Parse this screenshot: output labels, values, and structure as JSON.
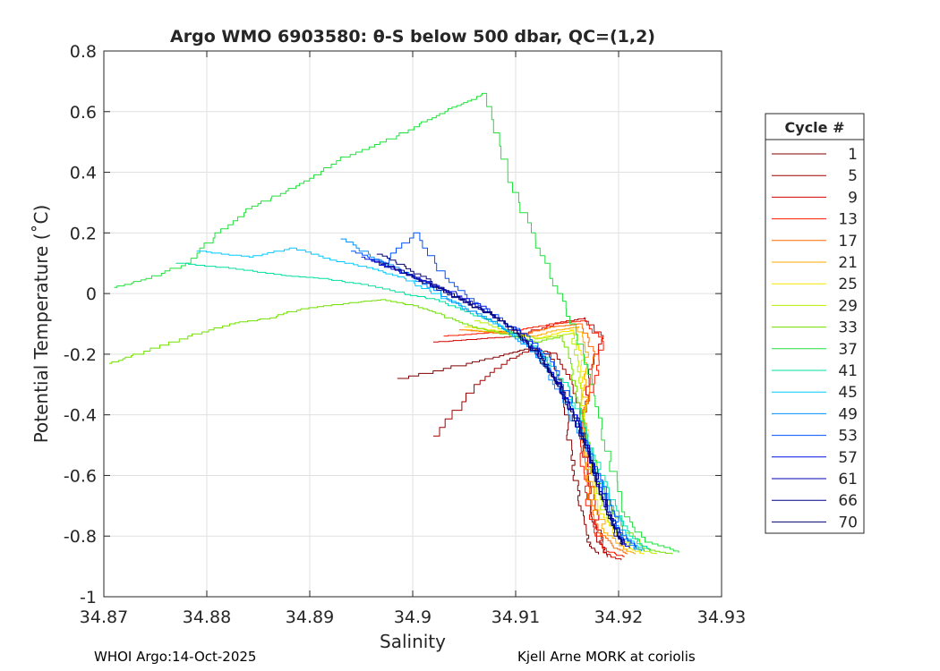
{
  "chart_data": {
    "type": "line",
    "title": "Argo WMO 6903580: θ-S below 500 dbar,  QC=(1,2)",
    "xlabel": "Salinity",
    "ylabel": "Potential Temperature (˚C)",
    "xlim": [
      34.87,
      34.93
    ],
    "ylim": [
      -1,
      0.8
    ],
    "xticks": [
      "34.87",
      "34.88",
      "34.89",
      "34.9",
      "34.91",
      "34.92",
      "34.93"
    ],
    "yticks": [
      "-1",
      "-0.8",
      "-0.6",
      "-0.4",
      "-0.2",
      "0",
      "0.2",
      "0.4",
      "0.6",
      "0.8"
    ],
    "xtick_values": [
      34.87,
      34.88,
      34.89,
      34.9,
      34.91,
      34.92,
      34.93
    ],
    "ytick_values": [
      -1,
      -0.8,
      -0.6,
      -0.4,
      -0.2,
      0,
      0.2,
      0.4,
      0.6,
      0.8
    ],
    "grid": true,
    "legend_title": "Cycle #",
    "legend_position": "right",
    "series": [
      {
        "name": "1",
        "color": "#800000",
        "x": [
          34.8985,
          34.905,
          34.909,
          34.9115,
          34.913,
          34.9145,
          34.915,
          34.9155,
          34.916,
          34.9165,
          34.917,
          34.918
        ],
        "y": [
          -0.28,
          -0.23,
          -0.2,
          -0.18,
          -0.2,
          -0.3,
          -0.45,
          -0.55,
          -0.65,
          -0.75,
          -0.82,
          -0.86
        ]
      },
      {
        "name": "5",
        "color": "#a30000",
        "x": [
          34.902,
          34.906,
          34.909,
          34.9115,
          34.914,
          34.9155,
          34.9165,
          34.917,
          34.9175,
          34.918,
          34.919
        ],
        "y": [
          -0.47,
          -0.3,
          -0.22,
          -0.18,
          -0.2,
          -0.3,
          -0.48,
          -0.6,
          -0.72,
          -0.82,
          -0.87
        ]
      },
      {
        "name": "9",
        "color": "#d10000",
        "x": [
          34.902,
          34.906,
          34.91,
          34.9135,
          34.9165,
          34.9185,
          34.9175,
          34.9165,
          34.917,
          34.9175,
          34.918,
          34.9185,
          34.92
        ],
        "y": [
          -0.16,
          -0.15,
          -0.14,
          -0.1,
          -0.08,
          -0.15,
          -0.25,
          -0.42,
          -0.55,
          -0.68,
          -0.78,
          -0.85,
          -0.88
        ]
      },
      {
        "name": "13",
        "color": "#ff1a00",
        "x": [
          34.903,
          34.907,
          34.91,
          34.9135,
          34.9165,
          34.9185,
          34.918,
          34.9165,
          34.9165,
          34.917,
          34.9178,
          34.9188,
          34.9205
        ],
        "y": [
          -0.14,
          -0.13,
          -0.12,
          -0.1,
          -0.09,
          -0.17,
          -0.27,
          -0.44,
          -0.57,
          -0.7,
          -0.79,
          -0.85,
          -0.87
        ]
      },
      {
        "name": "17",
        "color": "#ff6a00",
        "x": [
          34.9045,
          34.908,
          34.911,
          34.9135,
          34.916,
          34.9175,
          34.9172,
          34.9166,
          34.9168,
          34.9173,
          34.9182,
          34.9195,
          34.921
        ],
        "y": [
          -0.12,
          -0.13,
          -0.13,
          -0.11,
          -0.1,
          -0.19,
          -0.3,
          -0.45,
          -0.58,
          -0.7,
          -0.79,
          -0.84,
          -0.86
        ]
      },
      {
        "name": "21",
        "color": "#ffaa00",
        "x": [
          34.905,
          34.909,
          34.9115,
          34.914,
          34.916,
          34.917,
          34.9168,
          34.9167,
          34.917,
          34.9177,
          34.9188,
          34.9205,
          34.9215
        ],
        "y": [
          -0.12,
          -0.13,
          -0.14,
          -0.12,
          -0.11,
          -0.21,
          -0.32,
          -0.45,
          -0.58,
          -0.7,
          -0.79,
          -0.84,
          -0.86
        ]
      },
      {
        "name": "25",
        "color": "#f5e600",
        "x": [
          34.905,
          34.9095,
          34.912,
          34.914,
          34.9155,
          34.9165,
          34.9165,
          34.9168,
          34.9173,
          34.918,
          34.9192,
          34.921,
          34.9225
        ],
        "y": [
          -0.11,
          -0.13,
          -0.15,
          -0.13,
          -0.12,
          -0.22,
          -0.33,
          -0.45,
          -0.58,
          -0.7,
          -0.78,
          -0.84,
          -0.86
        ]
      },
      {
        "name": "29",
        "color": "#b8f000",
        "x": [
          34.906,
          34.9095,
          34.912,
          34.914,
          34.9155,
          34.916,
          34.9162,
          34.9167,
          34.9173,
          34.9182,
          34.9195,
          34.9215,
          34.9235
        ],
        "y": [
          -0.09,
          -0.13,
          -0.15,
          -0.14,
          -0.13,
          -0.24,
          -0.35,
          -0.46,
          -0.58,
          -0.7,
          -0.78,
          -0.84,
          -0.86
        ]
      },
      {
        "name": "33",
        "color": "#70e000",
        "x": [
          34.8705,
          34.873,
          34.878,
          34.882,
          34.886,
          34.889,
          34.894,
          34.897,
          34.9,
          34.902,
          34.904,
          34.907,
          34.9095,
          34.912,
          34.9145,
          34.9155,
          34.916,
          34.9168,
          34.9178,
          34.919,
          34.9205,
          34.9225,
          34.925
        ],
        "y": [
          -0.23,
          -0.2,
          -0.14,
          -0.1,
          -0.08,
          -0.05,
          -0.03,
          -0.02,
          -0.04,
          -0.06,
          -0.09,
          -0.12,
          -0.14,
          -0.16,
          -0.14,
          -0.25,
          -0.36,
          -0.47,
          -0.59,
          -0.7,
          -0.78,
          -0.84,
          -0.86
        ]
      },
      {
        "name": "37",
        "color": "#1ee03a",
        "x": [
          34.871,
          34.874,
          34.878,
          34.881,
          34.884,
          34.887,
          34.89,
          34.893,
          34.897,
          34.9005,
          34.903,
          34.905,
          34.907,
          34.909,
          34.9115,
          34.9135,
          34.9155,
          34.9172,
          34.9188,
          34.9205,
          34.9225,
          34.926
        ],
        "y": [
          0.02,
          0.05,
          0.1,
          0.2,
          0.28,
          0.33,
          0.38,
          0.45,
          0.5,
          0.56,
          0.6,
          0.63,
          0.66,
          0.4,
          0.2,
          0.05,
          -0.1,
          -0.3,
          -0.52,
          -0.72,
          -0.82,
          -0.855
        ]
      },
      {
        "name": "41",
        "color": "#00e0a0",
        "x": [
          34.877,
          34.883,
          34.887,
          34.891,
          34.895,
          34.899,
          34.902,
          34.905,
          34.908,
          34.91,
          34.912,
          34.9135,
          34.9152,
          34.9165,
          34.918,
          34.9195,
          34.921,
          34.923
        ],
        "y": [
          0.1,
          0.08,
          0.06,
          0.05,
          0.03,
          0.0,
          -0.02,
          -0.06,
          -0.1,
          -0.14,
          -0.18,
          -0.24,
          -0.32,
          -0.44,
          -0.58,
          -0.7,
          -0.8,
          -0.85
        ]
      },
      {
        "name": "45",
        "color": "#00c8ff",
        "x": [
          34.879,
          34.884,
          34.888,
          34.892,
          34.896,
          34.899,
          34.902,
          34.905,
          34.908,
          34.91,
          34.912,
          34.9135,
          34.915,
          34.9165,
          34.918,
          34.9195,
          34.921,
          34.9225
        ],
        "y": [
          0.14,
          0.12,
          0.15,
          0.11,
          0.08,
          0.05,
          0.0,
          -0.05,
          -0.1,
          -0.14,
          -0.19,
          -0.26,
          -0.35,
          -0.47,
          -0.6,
          -0.72,
          -0.81,
          -0.85
        ]
      },
      {
        "name": "49",
        "color": "#0090ff",
        "x": [
          34.893,
          34.896,
          34.899,
          34.902,
          34.905,
          34.908,
          34.91,
          34.912,
          34.9132,
          34.9148,
          34.9162,
          34.9178,
          34.919,
          34.9205,
          34.922
        ],
        "y": [
          0.18,
          0.12,
          0.07,
          0.01,
          -0.05,
          -0.1,
          -0.15,
          -0.2,
          -0.27,
          -0.36,
          -0.48,
          -0.6,
          -0.72,
          -0.81,
          -0.85
        ]
      },
      {
        "name": "53",
        "color": "#0050ff",
        "x": [
          34.894,
          34.897,
          34.9,
          34.903,
          34.906,
          34.9085,
          34.911,
          34.913,
          34.9145,
          34.916,
          34.9175,
          34.9188,
          34.9202,
          34.9215
        ],
        "y": [
          0.14,
          0.1,
          0.2,
          0.05,
          -0.03,
          -0.09,
          -0.14,
          -0.21,
          -0.3,
          -0.42,
          -0.55,
          -0.68,
          -0.79,
          -0.84
        ]
      },
      {
        "name": "57",
        "color": "#0010e0",
        "x": [
          34.895,
          34.898,
          34.901,
          34.904,
          34.907,
          34.9095,
          34.9118,
          34.9135,
          34.915,
          34.9165,
          34.9178,
          34.919,
          34.92,
          34.921
        ],
        "y": [
          0.12,
          0.08,
          0.04,
          0.0,
          -0.05,
          -0.11,
          -0.18,
          -0.26,
          -0.36,
          -0.48,
          -0.6,
          -0.72,
          -0.8,
          -0.84
        ]
      },
      {
        "name": "61",
        "color": "#0000b0",
        "x": [
          34.896,
          34.899,
          34.9015,
          34.904,
          34.907,
          34.9095,
          34.912,
          34.9138,
          34.9152,
          34.9167,
          34.9178,
          34.919,
          34.92,
          34.9208
        ],
        "y": [
          0.11,
          0.07,
          0.03,
          -0.01,
          -0.06,
          -0.12,
          -0.2,
          -0.28,
          -0.38,
          -0.5,
          -0.62,
          -0.72,
          -0.8,
          -0.83
        ]
      },
      {
        "name": "66",
        "color": "#00008a",
        "x": [
          34.897,
          34.8995,
          34.902,
          34.905,
          34.908,
          34.9105,
          34.9125,
          34.914,
          34.9155,
          34.9168,
          34.918,
          34.919,
          34.9198,
          34.9205
        ],
        "y": [
          0.1,
          0.06,
          0.02,
          -0.03,
          -0.08,
          -0.14,
          -0.22,
          -0.3,
          -0.4,
          -0.52,
          -0.63,
          -0.73,
          -0.8,
          -0.83
        ]
      },
      {
        "name": "70",
        "color": "#000070",
        "x": [
          34.8965,
          34.899,
          34.9015,
          34.9045,
          34.9075,
          34.91,
          34.912,
          34.9138,
          34.9155,
          34.9168,
          34.918,
          34.919,
          34.9198,
          34.9202
        ],
        "y": [
          0.13,
          0.09,
          0.04,
          -0.02,
          -0.07,
          -0.13,
          -0.2,
          -0.29,
          -0.39,
          -0.51,
          -0.63,
          -0.73,
          -0.8,
          -0.83
        ]
      }
    ]
  },
  "footer": {
    "left": "WHOI Argo:14-Oct-2025",
    "right": "Kjell Arne MORK at coriolis"
  }
}
